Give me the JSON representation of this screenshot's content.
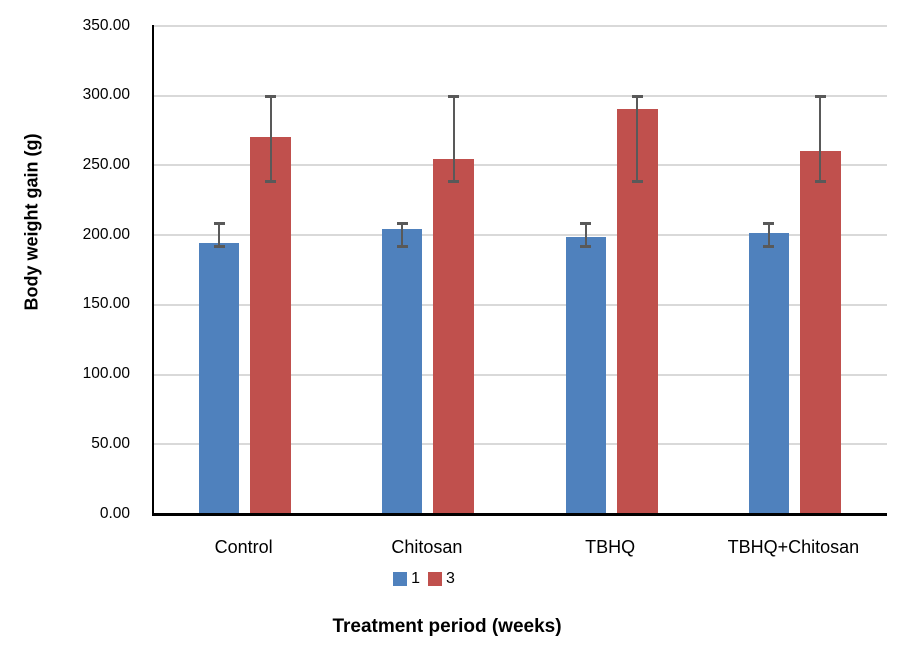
{
  "chart_data": {
    "type": "bar",
    "title": "",
    "categories": [
      "Control",
      "Chitosan",
      "TBHQ",
      "TBHQ+Chitosan"
    ],
    "series": [
      {
        "name": "1",
        "color": "#4F81BD",
        "values": [
          194,
          204,
          198,
          201
        ],
        "error_bar": {
          "low": 190,
          "high": 209
        }
      },
      {
        "name": "3",
        "color": "#C0504D",
        "values": [
          270,
          254,
          290,
          260
        ],
        "error_bar": {
          "low": 237,
          "high": 300
        }
      }
    ],
    "xlabel": "Treatment period (weeks)",
    "ylabel": "Body weight gain (g)",
    "ylim": [
      0,
      350
    ],
    "ytick_step": 50,
    "yticks": [
      "350.00",
      "300.00",
      "250.00",
      "200.00",
      "150.00",
      "100.00",
      "50.00",
      "0.00"
    ],
    "grid": true,
    "legend_position": "bottom",
    "colors": {
      "error_bar": "#595959",
      "gridline": "#D9D9D9",
      "axis": "#000000",
      "text": "#000000"
    }
  }
}
